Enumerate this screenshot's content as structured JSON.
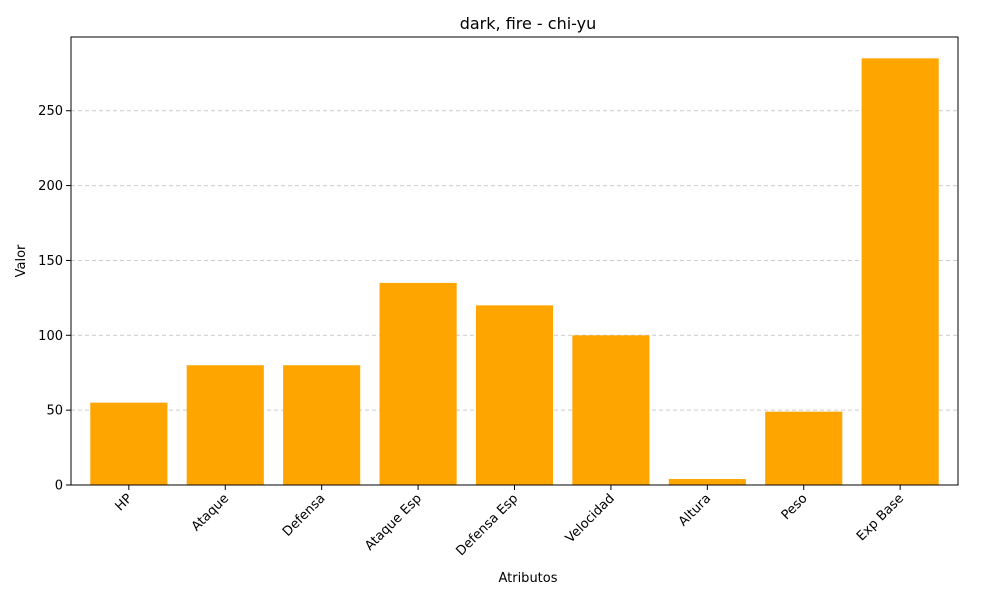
{
  "chart_data": {
    "type": "bar",
    "title": "dark, fire - chi-yu",
    "xlabel": "Atributos",
    "ylabel": "Valor",
    "categories": [
      "HP",
      "Ataque",
      "Defensa",
      "Ataque Esp",
      "Defensa Esp",
      "Velocidad",
      "Altura",
      "Peso",
      "Exp Base"
    ],
    "values": [
      55,
      80,
      80,
      135,
      120,
      100,
      4,
      49,
      285
    ],
    "ylim": [
      0,
      299.25
    ],
    "yticks": [
      0,
      50,
      100,
      150,
      200,
      250
    ],
    "bar_color": "#FFA500",
    "grid": "y-dashed",
    "xtick_rotation": 45
  }
}
